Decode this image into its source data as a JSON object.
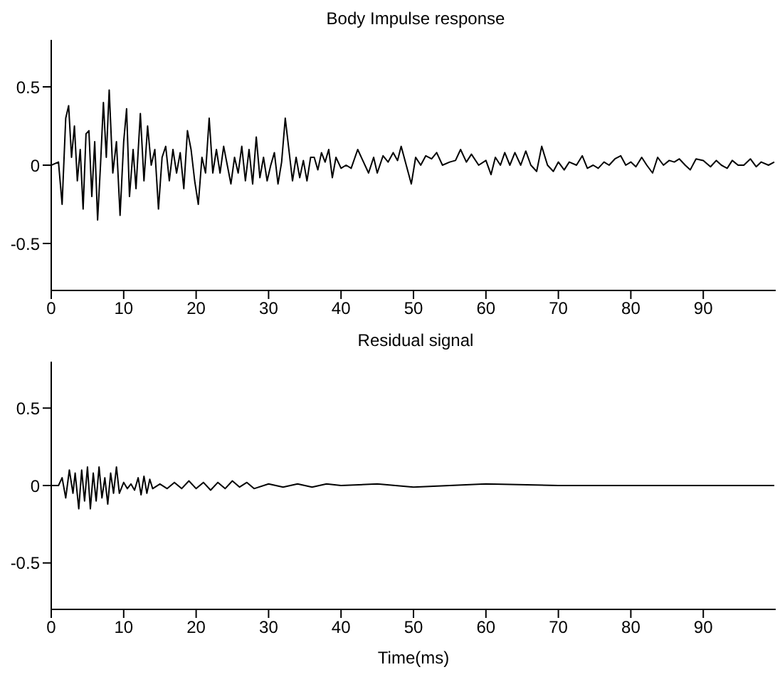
{
  "chart_data": [
    {
      "type": "line",
      "title": "Body Impulse response",
      "color": "#000000",
      "xlim": [
        0,
        100
      ],
      "ylim": [
        -0.8,
        0.8
      ],
      "xticks": [
        0,
        10,
        20,
        30,
        40,
        50,
        60,
        70,
        80,
        90
      ],
      "yticks": [
        -0.5,
        0,
        0.5
      ],
      "x": [
        0,
        1,
        1.5,
        2,
        2.4,
        2.8,
        3.2,
        3.6,
        4,
        4.4,
        4.8,
        5.2,
        5.6,
        6,
        6.4,
        6.8,
        7.2,
        7.6,
        8,
        8.5,
        9,
        9.5,
        10,
        10.4,
        10.8,
        11.3,
        11.7,
        12.3,
        12.8,
        13.3,
        13.8,
        14.3,
        14.8,
        15.3,
        15.8,
        16.3,
        16.8,
        17.3,
        17.8,
        18.3,
        18.8,
        19.3,
        19.8,
        20.3,
        20.8,
        21.3,
        21.8,
        22.3,
        22.8,
        23.3,
        23.8,
        24.3,
        24.8,
        25.3,
        25.8,
        26.3,
        26.8,
        27.3,
        27.8,
        28.3,
        28.8,
        29.3,
        29.8,
        30.3,
        30.8,
        31.3,
        31.8,
        32.3,
        32.8,
        33.3,
        33.8,
        34.3,
        34.8,
        35.3,
        35.8,
        36.3,
        36.8,
        37.3,
        37.8,
        38.3,
        38.8,
        39.3,
        40,
        40.7,
        41.4,
        42.3,
        43,
        43.8,
        44.5,
        45,
        45.8,
        46.5,
        47.2,
        47.8,
        48.3,
        49,
        49.7,
        50.3,
        51,
        51.7,
        52.5,
        53.2,
        54,
        55,
        55.8,
        56.5,
        57.3,
        58,
        59,
        60,
        60.7,
        61.3,
        62,
        62.6,
        63.3,
        64,
        64.8,
        65.5,
        66.2,
        67,
        67.7,
        68.5,
        69.3,
        70,
        70.8,
        71.5,
        72.5,
        73.3,
        74,
        74.8,
        75.5,
        76.3,
        77,
        77.8,
        78.6,
        79.3,
        80,
        80.7,
        81.5,
        82.2,
        83,
        83.7,
        84.5,
        85.3,
        86,
        86.7,
        87.5,
        88.2,
        89,
        90,
        91,
        91.8,
        92.5,
        93.3,
        94,
        94.8,
        95.6,
        96.5,
        97.3,
        98,
        99,
        99.8
      ],
      "values": [
        0,
        0.02,
        -0.25,
        0.3,
        0.38,
        0.05,
        0.25,
        -0.1,
        0.1,
        -0.28,
        0.2,
        0.22,
        -0.2,
        0.15,
        -0.35,
        0,
        0.4,
        0.05,
        0.48,
        -0.05,
        0.15,
        -0.32,
        0.15,
        0.36,
        -0.2,
        0.1,
        -0.15,
        0.33,
        -0.1,
        0.25,
        0,
        0.1,
        -0.28,
        0.05,
        0.12,
        -0.1,
        0.1,
        -0.05,
        0.08,
        -0.15,
        0.22,
        0.1,
        -0.1,
        -0.25,
        0.05,
        -0.05,
        0.3,
        -0.05,
        0.1,
        -0.05,
        0.12,
        0,
        -0.12,
        0.05,
        -0.05,
        0.12,
        -0.1,
        0.1,
        -0.12,
        0.18,
        -0.08,
        0.05,
        -0.1,
        0,
        0.08,
        -0.12,
        0.02,
        0.3,
        0.1,
        -0.1,
        0.05,
        -0.08,
        0.03,
        -0.1,
        0.05,
        0.05,
        -0.03,
        0.08,
        0.02,
        0.1,
        -0.08,
        0.05,
        -0.02,
        0,
        -0.02,
        0.1,
        0.03,
        -0.05,
        0.05,
        -0.05,
        0.06,
        0.02,
        0.08,
        0.03,
        0.12,
        0,
        -0.12,
        0.05,
        0,
        0.06,
        0.04,
        0.08,
        0,
        0.02,
        0.03,
        0.1,
        0.02,
        0.07,
        0,
        0.03,
        -0.06,
        0.05,
        0,
        0.08,
        0,
        0.08,
        0,
        0.09,
        0,
        -0.04,
        0.12,
        0,
        -0.04,
        0.02,
        -0.03,
        0.02,
        0,
        0.06,
        -0.02,
        0,
        -0.02,
        0.02,
        0,
        0.04,
        0.06,
        0,
        0.02,
        -0.01,
        0.05,
        0,
        -0.05,
        0.05,
        0,
        0.03,
        0.02,
        0.04,
        0,
        -0.03,
        0.04,
        0.03,
        -0.01,
        0.03,
        0,
        -0.02,
        0.03,
        0,
        0,
        0.04,
        -0.01,
        0.02,
        0,
        0.02
      ]
    },
    {
      "type": "line",
      "title": "Residual signal",
      "xlabel": "Time(ms)",
      "color": "#000000",
      "xlim": [
        0,
        100
      ],
      "ylim": [
        -0.8,
        0.8
      ],
      "xticks": [
        0,
        10,
        20,
        30,
        40,
        50,
        60,
        70,
        80,
        90
      ],
      "yticks": [
        -0.5,
        0,
        0.5
      ],
      "x": [
        0,
        1,
        1.5,
        2,
        2.5,
        3,
        3.3,
        3.8,
        4.2,
        4.6,
        5,
        5.4,
        5.8,
        6.2,
        6.6,
        7,
        7.4,
        7.8,
        8.2,
        8.6,
        9,
        9.4,
        10,
        10.5,
        11,
        11.5,
        12,
        12.4,
        12.8,
        13.2,
        13.6,
        14,
        15,
        16,
        17,
        18,
        19,
        20,
        21,
        22,
        23,
        24,
        25,
        26,
        27,
        28,
        30,
        32,
        34,
        36,
        38,
        40,
        45,
        50,
        55,
        60,
        70,
        80,
        90,
        99.8
      ],
      "values": [
        0,
        0,
        0.05,
        -0.08,
        0.1,
        -0.05,
        0.08,
        -0.15,
        0.1,
        -0.1,
        0.12,
        -0.15,
        0.08,
        -0.1,
        0.12,
        -0.08,
        0.05,
        -0.12,
        0.08,
        -0.05,
        0.12,
        -0.05,
        0.02,
        -0.02,
        0.01,
        -0.03,
        0.05,
        -0.06,
        0.06,
        -0.05,
        0.04,
        -0.02,
        0.01,
        -0.02,
        0.02,
        -0.02,
        0.03,
        -0.02,
        0.02,
        -0.03,
        0.02,
        -0.02,
        0.03,
        -0.01,
        0.02,
        -0.02,
        0.01,
        -0.01,
        0.01,
        -0.01,
        0.01,
        0,
        0.01,
        -0.01,
        0,
        0.01,
        0,
        0,
        0,
        0
      ]
    }
  ]
}
